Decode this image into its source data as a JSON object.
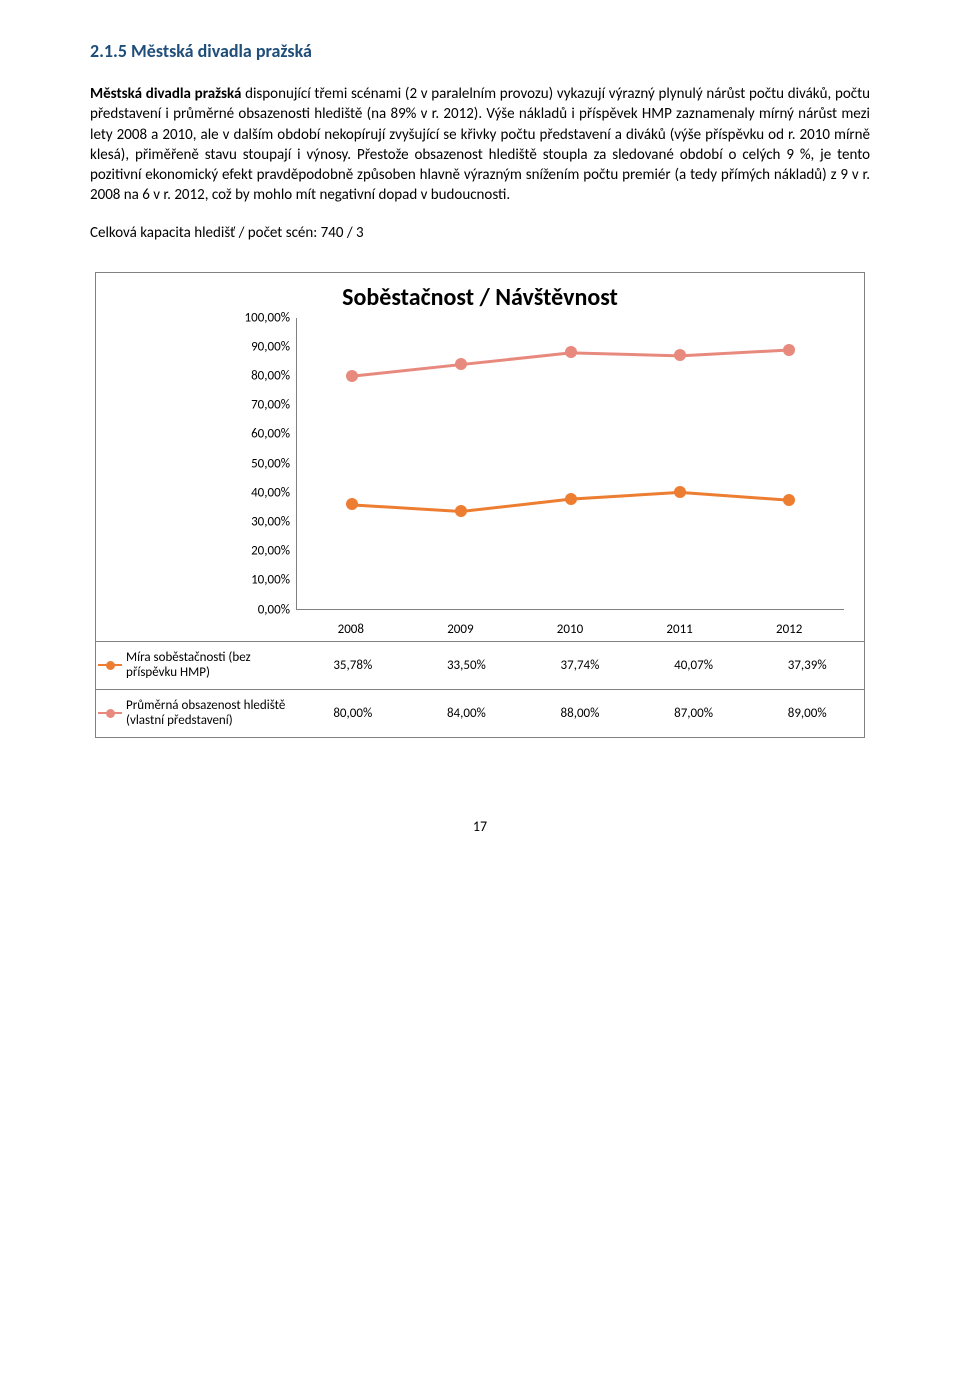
{
  "heading": "2.1.5  Městská divadla pražská",
  "para1_lead": "Městská divadla pražská",
  "para1_rest": " disponující třemi scénami (2 v paralelním provozu) vykazují výrazný plynulý nárůst počtu diváků, počtu představení i průměrné obsazenosti hlediště (na 89% v r. 2012). Výše nákladů i příspěvek HMP zaznamenaly mírný nárůst mezi lety 2008 a 2010, ale v dalším období nekopírují zvyšující se křivky počtu představení a diváků (výše příspěvku od r. 2010 mírně klesá), přiměřeně stavu stoupají i výnosy. Přestože obsazenost hlediště stoupla za sledované období o celých 9 %, je tento pozitivní ekonomický efekt pravděpodobně způsoben hlavně výrazným snížením počtu premiér (a tedy přímých nákladů) z 9 v r. 2008 na 6 v r. 2012, což by mohlo mít negativní dopad v budoucnosti.",
  "kapacita": "Celková kapacita hledišť / počet scén: 740 / 3",
  "chart": {
    "title": "Soběstačnost / Návštěvnost",
    "y_ticks": [
      "100,00%",
      "90,00%",
      "80,00%",
      "70,00%",
      "60,00%",
      "50,00%",
      "40,00%",
      "30,00%",
      "20,00%",
      "10,00%",
      "0,00%"
    ],
    "x_labels": [
      "2008",
      "2009",
      "2010",
      "2011",
      "2012"
    ],
    "series": [
      {
        "label": "Míra soběstačnosti (bez příspěvku HMP)",
        "color": "#ed7d31",
        "values_label": [
          "35,78%",
          "33,50%",
          "37,74%",
          "40,07%",
          "37,39%"
        ],
        "values_num": [
          35.78,
          33.5,
          37.74,
          40.07,
          37.39
        ]
      },
      {
        "label": "Průměrná obsazenost hlediště (vlastní představení)",
        "color": "#e8897e",
        "values_label": [
          "80,00%",
          "84,00%",
          "88,00%",
          "87,00%",
          "89,00%"
        ],
        "values_num": [
          80,
          84,
          88,
          87,
          89
        ]
      }
    ],
    "y_max": 100,
    "y_min": 0,
    "axis_color": "#808080",
    "marker_radius": 6,
    "line_width": 3
  },
  "page_num": "17"
}
